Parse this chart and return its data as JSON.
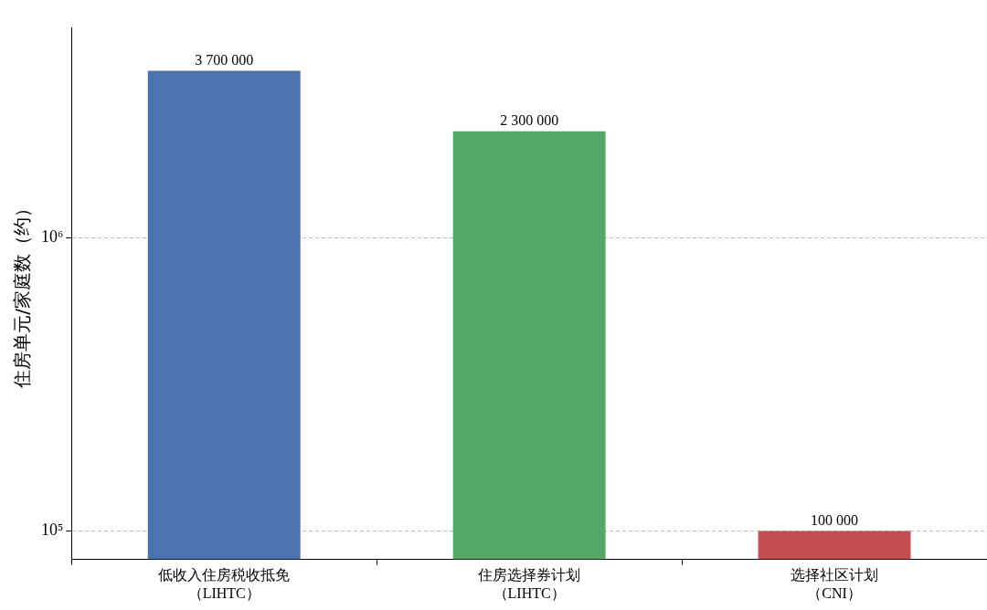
{
  "chart_data": {
    "type": "bar",
    "ylabel": "住房单元/家庭数（约）",
    "categories": [
      "低收入住房税收抵免（LIHTC）",
      "住房选择券计划（LIHTC）",
      "选择社区计划（CNI）"
    ],
    "values": [
      3700000,
      2300000,
      100000
    ],
    "colors": [
      "#4c72b0",
      "#55a868",
      "#c44e52"
    ],
    "value_labels": [
      "3 700 000",
      "2 300 000",
      "100 000"
    ],
    "log": "y",
    "ylim": [
      80000,
      5200000
    ],
    "yticks": [
      {
        "value": 100000,
        "label": "10⁵"
      },
      {
        "value": 1000000,
        "label": "10⁶"
      }
    ],
    "grid": "y",
    "legend": false
  }
}
